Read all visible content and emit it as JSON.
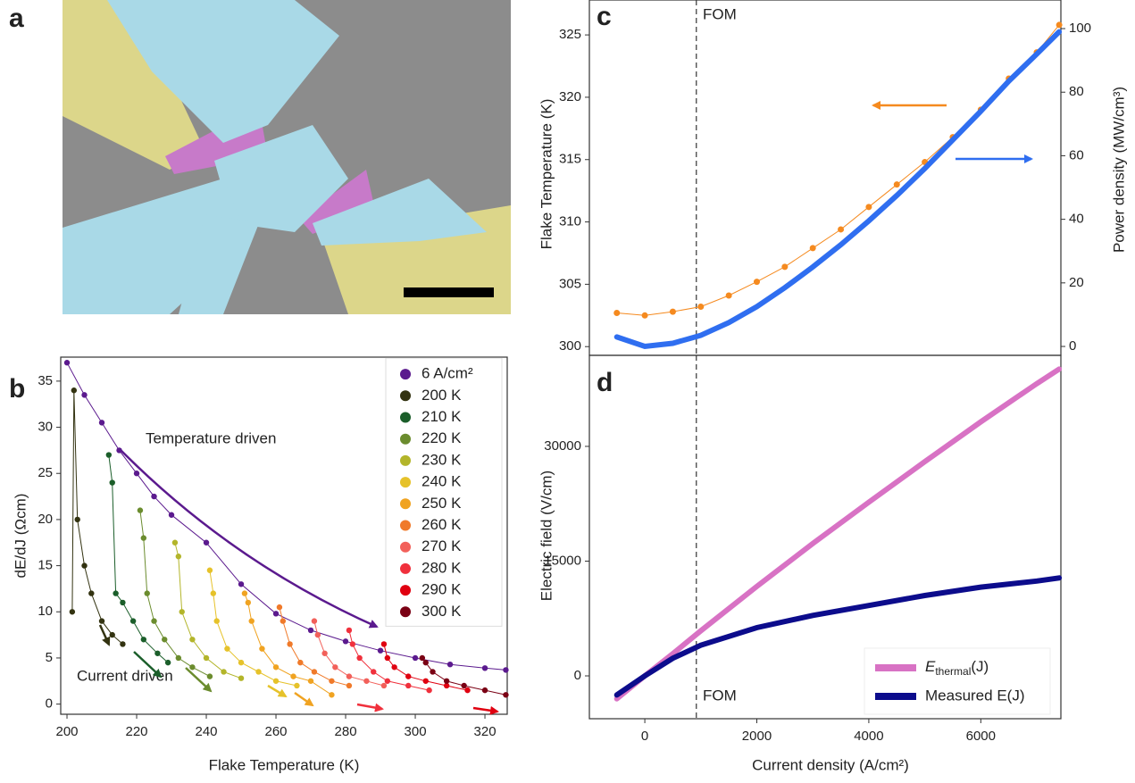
{
  "panel_a": {
    "panel_label": "a"
  },
  "chart_data": [
    {
      "type": "scatter",
      "panel_label": "b",
      "xlabel": "Flake Temperature (K)",
      "ylabel": "dE/dJ (Ωcm)",
      "xlim": [
        198.2,
        326.4
      ],
      "xticks": [
        200,
        220,
        240,
        260,
        280,
        300,
        320
      ],
      "ylim": [
        -1.1,
        37.6
      ],
      "yticks": [
        0,
        5,
        10,
        15,
        20,
        25,
        30,
        35
      ],
      "legend": "upper right",
      "annotations": [
        "Temperature driven",
        "Current driven"
      ],
      "series": [
        {
          "name": "6 A/cm²",
          "color": "#5b1a8e",
          "x": [
            200,
            205,
            210,
            215,
            220,
            225,
            230,
            240,
            250,
            260,
            270,
            280,
            290,
            300,
            310,
            320,
            326
          ],
          "values": [
            37,
            33.5,
            30.5,
            27.5,
            25,
            22.5,
            20.5,
            17.5,
            13,
            9.8,
            8,
            6.8,
            5.8,
            5,
            4.3,
            3.9,
            3.7
          ]
        },
        {
          "name": "200 K",
          "color": "#333311",
          "x": [
            201.5,
            202,
            203,
            205,
            207,
            210,
            213,
            216
          ],
          "values": [
            10,
            34,
            20,
            15,
            12,
            9,
            7.5,
            6.5
          ]
        },
        {
          "name": "210 K",
          "color": "#1b5e2a",
          "x": [
            212,
            213,
            214,
            216,
            219,
            222,
            226,
            229
          ],
          "values": [
            27,
            24,
            12,
            11,
            9,
            7,
            5.5,
            4.5
          ]
        },
        {
          "name": "220 K",
          "color": "#6b8c2e",
          "x": [
            221,
            222,
            223,
            225,
            228,
            232,
            236,
            241
          ],
          "values": [
            21,
            18,
            12,
            9,
            7,
            5,
            4,
            3
          ]
        },
        {
          "name": "230 K",
          "color": "#b3b52a",
          "x": [
            231,
            232,
            233,
            236,
            240,
            245,
            250
          ],
          "values": [
            17.5,
            16,
            10,
            7,
            5,
            3.5,
            2.8
          ]
        },
        {
          "name": "240 K",
          "color": "#e6c22a",
          "x": [
            241,
            242,
            243,
            246,
            250,
            255,
            260,
            266
          ],
          "values": [
            14.5,
            12,
            9,
            6,
            4.5,
            3.5,
            2.5,
            2
          ]
        },
        {
          "name": "250 K",
          "color": "#f0a321",
          "x": [
            251,
            252,
            253,
            256,
            260,
            265,
            270,
            276
          ],
          "values": [
            12,
            11,
            9,
            6,
            4,
            3,
            2.5,
            1
          ]
        },
        {
          "name": "260 K",
          "color": "#f07a2a",
          "x": [
            261,
            262,
            264,
            267,
            271,
            276,
            281
          ],
          "values": [
            10.5,
            9,
            6.5,
            4.5,
            3.5,
            2.5,
            2
          ]
        },
        {
          "name": "270 K",
          "color": "#f2605a",
          "x": [
            271,
            272,
            274,
            277,
            281,
            286,
            291
          ],
          "values": [
            9,
            7.5,
            5.5,
            4,
            3,
            2.5,
            2
          ]
        },
        {
          "name": "280 K",
          "color": "#f0303c",
          "x": [
            281,
            282,
            284,
            288,
            292,
            298,
            304
          ],
          "values": [
            8,
            6.5,
            5,
            3.5,
            2.5,
            2,
            1.5
          ]
        },
        {
          "name": "290 K",
          "color": "#e00010",
          "x": [
            291,
            292,
            294,
            298,
            303,
            309,
            315
          ],
          "values": [
            6.5,
            5,
            4,
            3,
            2.5,
            2,
            1.5
          ]
        },
        {
          "name": "300 K",
          "color": "#7a0014",
          "x": [
            302,
            303,
            305,
            309,
            314,
            320,
            326
          ],
          "values": [
            5,
            4.5,
            3.5,
            2.5,
            2,
            1.5,
            1
          ]
        }
      ]
    },
    {
      "type": "line",
      "panel_label": "c",
      "ylabel": "Flake Temperature (K)",
      "y2label": "Power density (MW/cm³)",
      "xlim": [
        -990,
        7430
      ],
      "ylim": [
        299.3,
        327.8
      ],
      "yticks": [
        300,
        305,
        310,
        315,
        320,
        325
      ],
      "y2lim": [
        -2.8,
        109
      ],
      "y2ticks": [
        0,
        20,
        40,
        60,
        80,
        100
      ],
      "vline": 920,
      "annotations": [
        "FOM"
      ],
      "x": [
        -500,
        0,
        500,
        1000,
        1500,
        2000,
        2500,
        3000,
        3500,
        4000,
        4500,
        5000,
        5500,
        6000,
        6500,
        7000,
        7400
      ],
      "series": [
        {
          "color": "#f58a1f",
          "markers": true,
          "values": [
            302.7,
            302.5,
            302.8,
            303.2,
            304.1,
            305.2,
            306.4,
            307.9,
            309.4,
            311.2,
            313,
            314.8,
            316.8,
            319,
            321.5,
            323.6,
            325.8
          ]
        },
        {
          "color": "#2f6ef0",
          "axis": "y2",
          "values": [
            3,
            0,
            1,
            3.5,
            7.5,
            12.5,
            18.5,
            25,
            32,
            39.5,
            47.5,
            56,
            65,
            74,
            83.5,
            92,
            99
          ]
        }
      ]
    },
    {
      "type": "line",
      "panel_label": "d",
      "xlabel": "Current density (A/cm²)",
      "ylabel": "Electric field (V/cm)",
      "xlim": [
        -990,
        7430
      ],
      "xticks": [
        0,
        2000,
        4000,
        6000
      ],
      "ylim": [
        -5600,
        41900
      ],
      "yticks": [
        0,
        15000,
        30000
      ],
      "vline": 920,
      "annotations": [
        "FOM"
      ],
      "legend": "lower right",
      "x": [
        -500,
        0,
        500,
        1000,
        2000,
        3000,
        4000,
        5000,
        6000,
        7000,
        7400
      ],
      "series": [
        {
          "name": "Ethermal(J)",
          "color": "#d872c4",
          "values": [
            -3000,
            0,
            2900,
            5900,
            11700,
            17300,
            22700,
            28000,
            33200,
            38200,
            40100
          ]
        },
        {
          "name": "Measured E(J)",
          "color": "#0c0c8c",
          "values": [
            -2500,
            0,
            2300,
            4000,
            6300,
            7900,
            9200,
            10500,
            11600,
            12400,
            12800
          ]
        }
      ]
    }
  ]
}
